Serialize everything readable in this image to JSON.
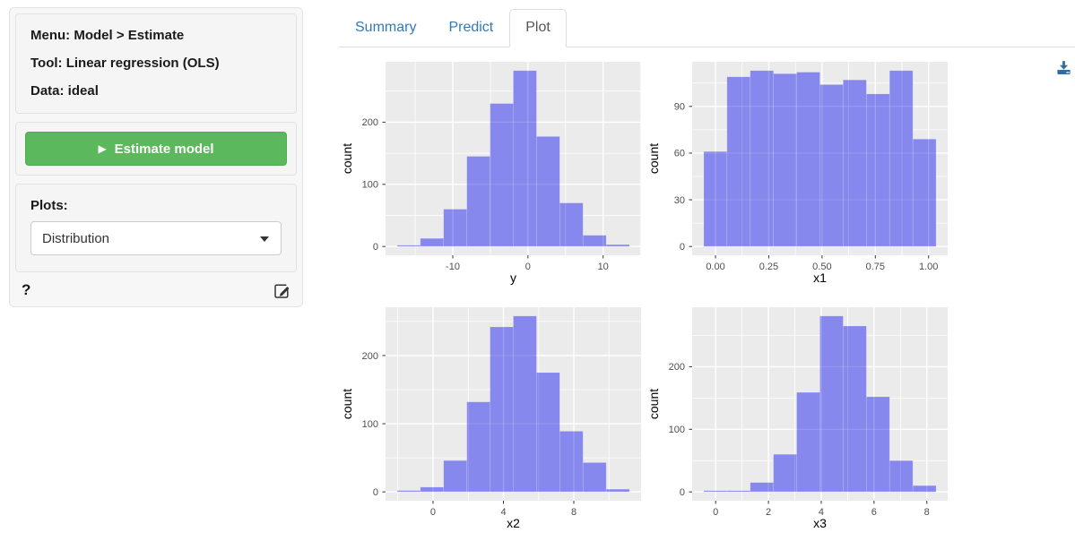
{
  "colors": {
    "accent": "#337ab7",
    "green": "#5cb85c",
    "download_icon": "#2e6da4",
    "bar_fill": "#8688ED",
    "panel_bg": "#EBEBEB",
    "grid_line": "#ffffff",
    "tick_text": "#4d4d4d",
    "axis_title": "#000000"
  },
  "sidebar": {
    "info_lines": [
      "Menu: Model > Estimate",
      "Tool: Linear regression (OLS)",
      "Data: ideal"
    ],
    "estimate_button_icon": "▶",
    "estimate_button_label": "Estimate model",
    "plots_label": "Plots:",
    "plot_type_value": "Distribution",
    "help_label": "?"
  },
  "tabs": [
    {
      "label": "Summary",
      "active": false
    },
    {
      "label": "Predict",
      "active": false
    },
    {
      "label": "Plot",
      "active": true
    }
  ],
  "chart_data": [
    {
      "type": "bar",
      "subtype": "histogram",
      "title": "",
      "xlabel": "y",
      "ylabel": "count",
      "bin_start": -17.4,
      "bin_width": 3.09,
      "counts": [
        2,
        13,
        60,
        145,
        230,
        283,
        177,
        70,
        18,
        3
      ],
      "xticks": [
        -10,
        0,
        10
      ],
      "xtick_labels": [
        "-10",
        "0",
        "10"
      ],
      "yticks": [
        0,
        100,
        200
      ],
      "grid": true,
      "legend": false
    },
    {
      "type": "bar",
      "subtype": "histogram",
      "title": "",
      "xlabel": "x1",
      "ylabel": "count",
      "bin_start": -0.055,
      "bin_width": 0.109,
      "counts": [
        61,
        109,
        113,
        111,
        112,
        104,
        107,
        98,
        113,
        69
      ],
      "xticks": [
        0,
        0.25,
        0.5,
        0.75,
        1
      ],
      "xtick_labels": [
        "0.00",
        "0.25",
        "0.50",
        "0.75",
        "1.00"
      ],
      "yticks": [
        0,
        30,
        60,
        90
      ],
      "grid": true,
      "legend": false
    },
    {
      "type": "bar",
      "subtype": "histogram",
      "title": "",
      "xlabel": "x2",
      "ylabel": "count",
      "bin_start": -2.04,
      "bin_width": 1.32,
      "counts": [
        2,
        7,
        46,
        132,
        242,
        258,
        175,
        89,
        43,
        4
      ],
      "xticks": [
        0,
        4,
        8
      ],
      "xtick_labels": [
        "0",
        "4",
        "8"
      ],
      "yticks": [
        0,
        100,
        200
      ],
      "grid": true,
      "legend": false
    },
    {
      "type": "bar",
      "subtype": "histogram",
      "title": "",
      "xlabel": "x3",
      "ylabel": "count",
      "bin_start": -0.45,
      "bin_width": 0.88,
      "counts": [
        2,
        2,
        15,
        60,
        159,
        281,
        265,
        152,
        50,
        10
      ],
      "xticks": [
        0,
        2,
        4,
        6,
        8
      ],
      "xtick_labels": [
        "0",
        "2",
        "4",
        "6",
        "8"
      ],
      "yticks": [
        0,
        100,
        200
      ],
      "grid": true,
      "legend": false
    }
  ]
}
